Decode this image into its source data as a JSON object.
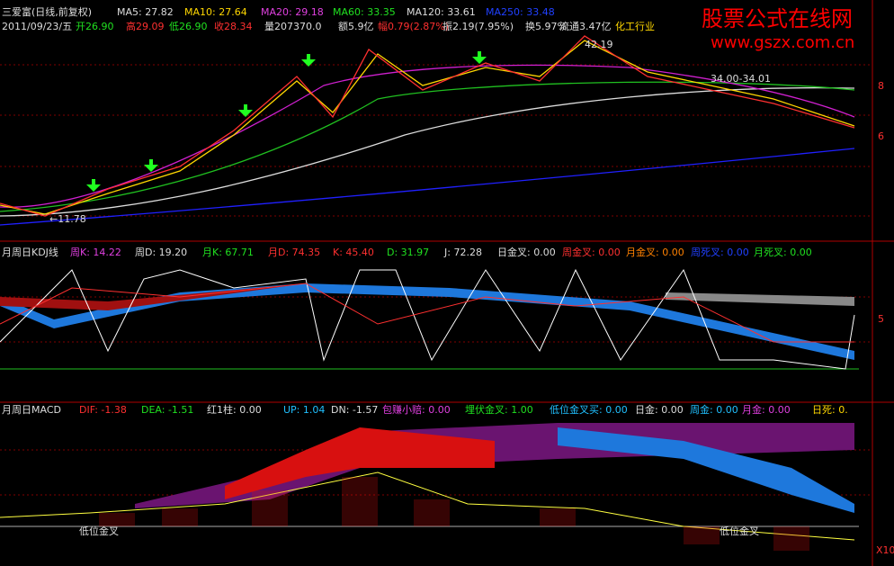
{
  "watermark": {
    "title": "股票公式在线网",
    "url": "www.gszx.com.cn"
  },
  "price_panel": {
    "header": [
      "三爱富(日线,前复权)",
      "MA5: 27.82",
      "MA10: 27.64",
      "MA20: 29.18",
      "MA60: 33.35",
      "MA120: 33.61",
      "MA250: 33.48"
    ],
    "quote": [
      "2011/09/23/五",
      "开26.90",
      "高29.09",
      "低26.90",
      "收28.34",
      "量207370.0",
      "额5.9亿",
      "幅0.79(2.87%)",
      "振2.19(7.95%)",
      "换5.97%",
      "流通3.47亿",
      "化工行业"
    ],
    "annotations": [
      "42.19",
      "34.00-34.01",
      "←11.78"
    ],
    "axis": [
      "8",
      "6"
    ]
  },
  "kdj_panel": {
    "header": [
      "月周日KDJ线",
      "周K: 14.22",
      "周D: 19.20",
      "月K: 67.71",
      "月D: 74.35",
      "K: 45.40",
      "D: 31.97",
      "J: 72.28",
      "日金叉: 0.00",
      "周金叉: 0.00",
      "月金叉: 0.00",
      "周死叉: 0.00",
      "月死叉: 0.00"
    ],
    "axis": [
      "5"
    ]
  },
  "macd_panel": {
    "header": [
      "月周日MACD",
      "DIF: -1.38",
      "DEA: -1.51",
      "红1柱: 0.00",
      "UP: 1.04",
      "DN: -1.57",
      "包赚小赔: 0.00",
      "埋伏金叉: 1.00",
      "低位金叉买: 0.00",
      "日金: 0.00",
      "周金: 0.00",
      "月金: 0.00",
      "日死: 0."
    ],
    "annotations": [
      "低位金叉",
      "低位金叉"
    ],
    "axis": [
      "X10"
    ]
  }
}
